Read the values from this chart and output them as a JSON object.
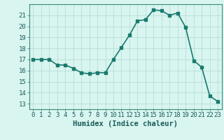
{
  "x": [
    0,
    1,
    2,
    3,
    4,
    5,
    6,
    7,
    8,
    9,
    10,
    11,
    12,
    13,
    14,
    15,
    16,
    17,
    18,
    19,
    20,
    21,
    22,
    23
  ],
  "y": [
    17,
    17,
    17,
    16.5,
    16.5,
    16.2,
    15.8,
    15.7,
    15.8,
    15.8,
    17,
    18.1,
    19.2,
    20.5,
    20.6,
    21.5,
    21.4,
    21.0,
    21.2,
    19.9,
    16.9,
    16.3,
    13.7,
    13.2
  ],
  "line_color": "#1a7a6e",
  "bg_color": "#d8f5f0",
  "grid_color": "#b8ddd8",
  "xlabel": "Humidex (Indice chaleur)",
  "ylim": [
    12.5,
    22.0
  ],
  "xlim": [
    -0.5,
    23.5
  ],
  "yticks": [
    13,
    14,
    15,
    16,
    17,
    18,
    19,
    20,
    21
  ],
  "xtick_labels": [
    "0",
    "1",
    "2",
    "3",
    "4",
    "5",
    "6",
    "7",
    "8",
    "9",
    "10",
    "11",
    "12",
    "13",
    "14",
    "15",
    "16",
    "17",
    "18",
    "19",
    "20",
    "21",
    "22",
    "23"
  ],
  "xlabel_fontsize": 7.5,
  "tick_fontsize": 6.5,
  "line_width": 1.2,
  "marker_size": 2.8
}
